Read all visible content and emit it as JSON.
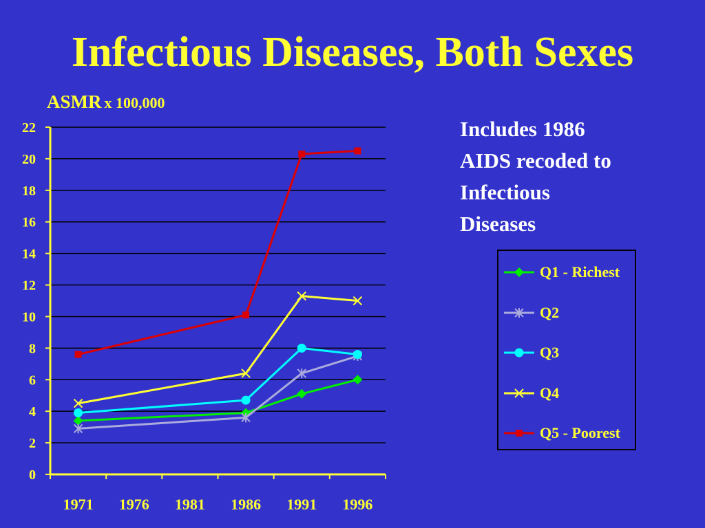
{
  "chart_data": {
    "type": "line",
    "title": "Infectious Diseases, Both Sexes",
    "ylabel_main": "ASMR",
    "ylabel_unit": "x 100,000",
    "xlabel": "",
    "x": [
      1971,
      1976,
      1981,
      1986,
      1991,
      1996
    ],
    "x_tick_labels": [
      "1971",
      "1976",
      "1981",
      "1986",
      "1991",
      "1996"
    ],
    "ylim": [
      0,
      22
    ],
    "y_ticks": [
      0,
      2,
      4,
      6,
      8,
      10,
      12,
      14,
      16,
      18,
      20,
      22
    ],
    "grid": true,
    "legend_position": "right",
    "annotation": [
      "Includes 1986",
      "AIDS recoded to",
      "Infectious",
      "Diseases"
    ],
    "series": [
      {
        "name": "Q1 - Richest",
        "color": "#00ee00",
        "marker": "diamond",
        "points": [
          [
            1971,
            3.4
          ],
          [
            1986,
            3.9
          ],
          [
            1991,
            5.1
          ],
          [
            1996,
            6.0
          ]
        ]
      },
      {
        "name": "Q2",
        "color": "#aaaadd",
        "marker": "asterisk",
        "points": [
          [
            1971,
            2.9
          ],
          [
            1986,
            3.6
          ],
          [
            1991,
            6.4
          ],
          [
            1996,
            7.5
          ]
        ]
      },
      {
        "name": "Q3",
        "color": "#00ffff",
        "marker": "circle",
        "points": [
          [
            1971,
            3.9
          ],
          [
            1986,
            4.7
          ],
          [
            1991,
            8.0
          ],
          [
            1996,
            7.6
          ]
        ]
      },
      {
        "name": "Q4",
        "color": "#ffff33",
        "marker": "x",
        "points": [
          [
            1971,
            4.5
          ],
          [
            1986,
            6.4
          ],
          [
            1991,
            11.3
          ],
          [
            1996,
            11.0
          ]
        ]
      },
      {
        "name": "Q5 - Poorest",
        "color": "#dd0000",
        "marker": "square",
        "points": [
          [
            1971,
            7.6
          ],
          [
            1986,
            10.1
          ],
          [
            1991,
            20.3
          ],
          [
            1996,
            20.5
          ]
        ]
      }
    ]
  }
}
